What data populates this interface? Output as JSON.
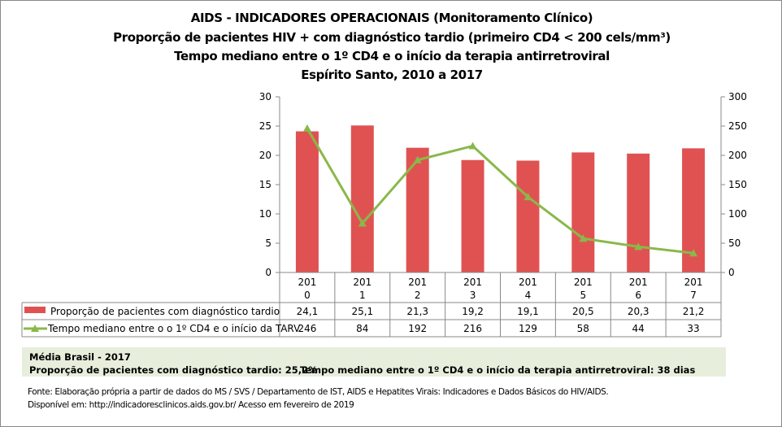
{
  "titles": [
    "AIDS - INDICADORES OPERACIONAIS (Monitoramento Clínico)",
    "Proporção de pacientes HIV + com diagnóstico tardio (primeiro CD4 < 200 cels/mm³)",
    "Tempo mediano entre o 1º CD4 e o início da terapia antirretroviral",
    "Espírito Santo, 2010 a 2017"
  ],
  "chart_data": {
    "type": "bar+line",
    "categories": [
      "2010",
      "2011",
      "2012",
      "2013",
      "2014",
      "2015",
      "2016",
      "2017"
    ],
    "category_labels": [
      [
        "201",
        "0"
      ],
      [
        "201",
        "1"
      ],
      [
        "201",
        "2"
      ],
      [
        "201",
        "3"
      ],
      [
        "201",
        "4"
      ],
      [
        "201",
        "5"
      ],
      [
        "201",
        "6"
      ],
      [
        "201",
        "7"
      ]
    ],
    "series": [
      {
        "name": "Proporção de pacientes com diagnóstico tardio",
        "type": "bar",
        "axis": "left",
        "color": "#e05252",
        "values": [
          24.1,
          25.1,
          21.3,
          19.2,
          19.1,
          20.5,
          20.3,
          21.2
        ],
        "labels": [
          "24,1",
          "25,1",
          "21,3",
          "19,2",
          "19,1",
          "20,5",
          "20,3",
          "21,2"
        ]
      },
      {
        "name": "Tempo mediano entre o o 1º CD4 e o início da TARV",
        "type": "line",
        "axis": "right",
        "color": "#8ab84a",
        "marker": "triangle",
        "values": [
          246,
          84,
          192,
          216,
          129,
          58,
          44,
          33
        ],
        "labels": [
          "246",
          "84",
          "192",
          "216",
          "129",
          "58",
          "44",
          "33"
        ]
      }
    ],
    "y_left": {
      "range": [
        0,
        30
      ],
      "ticks": [
        0,
        5,
        10,
        15,
        20,
        25,
        30
      ]
    },
    "y_right": {
      "range": [
        0,
        300
      ],
      "ticks": [
        0,
        50,
        100,
        150,
        200,
        250,
        300
      ]
    },
    "grid": false,
    "legend": "data table below chart"
  },
  "media": {
    "title": "Média Brasil - 2017",
    "item1": "Proporção de pacientes com diagnóstico  tardio: 25,2%",
    "item2": "Tempo mediano entre o 1º CD4 e o início da terapia antirretroviral: 38 dias"
  },
  "footer": [
    "Fonte: Elaboração própria a partir de dados do  MS / SVS / Departamento de IST, AIDS e Hepatites Virais: Indicadores e Dados Básicos do HIV/AIDS.",
    "Disponível em: http://indicadoresclinicos.aids.gov.br/ Acesso em fevereiro de 2019"
  ]
}
